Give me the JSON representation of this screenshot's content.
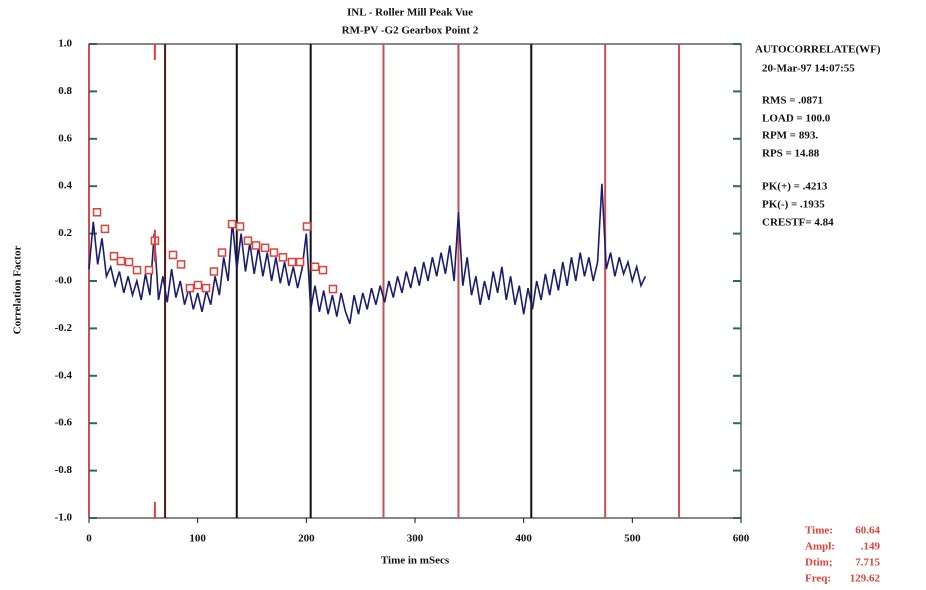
{
  "chart_data": {
    "type": "line",
    "title": "INL  - Roller Mill Peak Vue",
    "subtitle": "RM-PV    -G2    Gearbox Point 2",
    "ylabel": "Correlation Factor",
    "xlabel": "Time in mSecs",
    "xlim": [
      0,
      600
    ],
    "ylim": [
      -1,
      1
    ],
    "xticks": [
      0,
      100,
      200,
      300,
      400,
      500,
      600
    ],
    "yticks": [
      {
        "value": 1,
        "label": "1.0"
      },
      0.8,
      0.6,
      0.4,
      0.2,
      {
        "value": 0,
        "label": "-0.0"
      },
      -0.2,
      -0.4,
      -0.6,
      -0.8,
      {
        "value": -1,
        "label": "-1.0"
      }
    ],
    "series": [
      {
        "color": "#1c1c6e",
        "x": [
          0,
          4,
          8,
          12,
          16,
          20,
          24,
          28,
          32,
          36,
          40,
          44,
          48,
          52,
          56,
          60,
          64,
          68,
          72,
          76,
          80,
          84,
          88,
          92,
          96,
          100,
          104,
          108,
          112,
          116,
          120,
          124,
          128,
          132,
          136,
          140,
          144,
          148,
          152,
          156,
          160,
          164,
          168,
          172,
          176,
          180,
          184,
          188,
          192,
          196,
          200,
          204,
          208,
          212,
          216,
          220,
          224,
          228,
          232,
          236,
          240,
          244,
          248,
          252,
          256,
          260,
          264,
          268,
          272,
          276,
          280,
          284,
          288,
          292,
          296,
          300,
          304,
          308,
          312,
          316,
          320,
          324,
          328,
          332,
          336,
          340,
          344,
          348,
          352,
          356,
          360,
          364,
          368,
          372,
          376,
          380,
          384,
          388,
          392,
          396,
          400,
          404,
          408,
          412,
          416,
          420,
          424,
          428,
          432,
          436,
          440,
          444,
          448,
          452,
          456,
          460,
          464,
          468,
          472,
          476,
          480,
          484,
          488,
          492,
          496,
          500,
          504,
          508,
          512
        ],
        "values": [
          0.05,
          0.25,
          0.07,
          0.18,
          0.02,
          0.06,
          -0.02,
          0.04,
          -0.05,
          0.02,
          -0.06,
          0.0,
          -0.08,
          0.03,
          -0.06,
          0.2,
          -0.08,
          0.02,
          -0.09,
          0.05,
          -0.07,
          0.0,
          -0.1,
          -0.03,
          -0.12,
          -0.05,
          -0.13,
          -0.04,
          -0.1,
          0.02,
          -0.06,
          0.1,
          0.0,
          0.25,
          0.05,
          0.2,
          0.04,
          0.16,
          0.03,
          0.14,
          0.02,
          0.12,
          0.0,
          0.1,
          -0.01,
          0.08,
          -0.02,
          0.06,
          -0.03,
          0.05,
          0.2,
          -0.12,
          -0.02,
          -0.13,
          -0.04,
          -0.14,
          -0.06,
          -0.15,
          -0.05,
          -0.13,
          -0.18,
          -0.06,
          -0.14,
          -0.05,
          -0.12,
          -0.03,
          -0.1,
          -0.02,
          -0.09,
          0.0,
          -0.07,
          0.02,
          -0.05,
          0.04,
          -0.03,
          0.06,
          -0.02,
          0.08,
          0.0,
          0.1,
          0.02,
          0.12,
          0.03,
          0.15,
          0.0,
          0.29,
          -0.02,
          0.1,
          -0.06,
          0.02,
          -0.1,
          0.0,
          -0.08,
          0.04,
          -0.05,
          0.06,
          -0.08,
          0.02,
          -0.1,
          -0.02,
          -0.14,
          -0.03,
          -0.12,
          0.0,
          -0.08,
          0.03,
          -0.06,
          0.05,
          -0.04,
          0.08,
          -0.02,
          0.1,
          0.0,
          0.12,
          0.02,
          0.1,
          0.0,
          0.08,
          0.41,
          0.05,
          0.12,
          0.02,
          0.1,
          0.03,
          0.08,
          0.0,
          0.06,
          -0.02,
          0.02
        ]
      }
    ],
    "peaks": {
      "color": "#e0403a",
      "x": [
        7.4,
        14.7,
        23,
        29.4,
        36.8,
        44.2,
        55.2,
        60.7,
        77.3,
        84.7,
        92.9,
        100.3,
        107.7,
        115,
        122.4,
        131.6,
        139,
        146.3,
        153.7,
        162,
        170.2,
        178.5,
        186.8,
        194.2,
        200.6,
        208,
        215.3,
        224.5
      ],
      "values": [
        0.29,
        0.22,
        0.105,
        0.084,
        0.08,
        0.046,
        0.046,
        0.17,
        0.11,
        0.07,
        -0.03,
        -0.017,
        -0.03,
        0.04,
        0.12,
        0.24,
        0.23,
        0.17,
        0.15,
        0.14,
        0.12,
        0.1,
        0.08,
        0.08,
        0.23,
        0.06,
        0.046,
        -0.034
      ]
    },
    "harmonics": {
      "x": [
        0,
        70,
        136,
        204,
        271,
        340,
        407,
        475,
        543
      ],
      "colors": [
        "#c85050",
        "#5a1414",
        "#111111",
        "#111111",
        "#c85050",
        "#c85050",
        "#111111",
        "#c85050",
        "#c85050"
      ]
    },
    "tick_color": "#2a6a6a",
    "stats": [
      "AUTOCORRELATE(WF)",
      "20-Mar-97  14:07:55",
      "RMS = .0871",
      "LOAD = 100.0",
      "RPM =   893.",
      "RPS = 14.88",
      "PK(+) = .4213",
      "PK(-) = .1935",
      "CRESTF= 4.84"
    ],
    "readout": {
      "labels": [
        "Time:",
        "Ampl:",
        "Dtim;",
        "Freq:"
      ],
      "values": [
        60.64,
        0.149,
        7.715,
        129.62
      ],
      "value_labels": [
        "60.64",
        ".149",
        "7.715",
        "129.62"
      ],
      "color": "#e0403a"
    }
  }
}
